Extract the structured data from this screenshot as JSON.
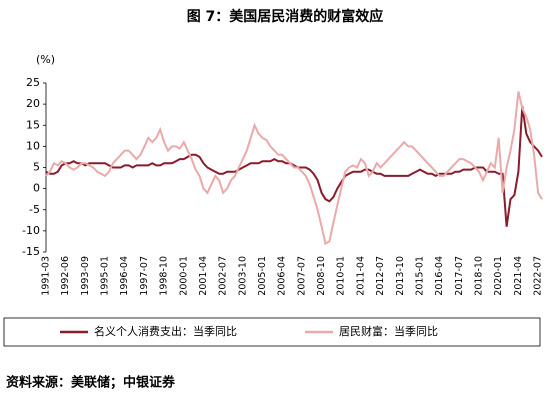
{
  "chart_data": {
    "type": "line",
    "title": "图 7：美国居民消费的财富效应",
    "y_label": "(%)",
    "source": "资料来源：美联储；中银证券",
    "ylim": [
      -15,
      25
    ],
    "yticks": [
      -15,
      -10,
      -5,
      0,
      5,
      10,
      15,
      20,
      25
    ],
    "categories": [
      "1991-03",
      null,
      null,
      null,
      null,
      "1992-06",
      null,
      null,
      null,
      null,
      "1993-09",
      null,
      null,
      null,
      null,
      "1995-01",
      null,
      null,
      null,
      null,
      "1996-04",
      null,
      null,
      null,
      null,
      "1997-07",
      null,
      null,
      null,
      null,
      "1998-10",
      null,
      null,
      null,
      null,
      "2000-01",
      null,
      null,
      null,
      null,
      "2001-04",
      null,
      null,
      null,
      null,
      "2002-07",
      null,
      null,
      null,
      null,
      "2003-10",
      null,
      null,
      null,
      null,
      "2005-01",
      null,
      null,
      null,
      null,
      "2006-04",
      null,
      null,
      null,
      null,
      "2007-07",
      null,
      null,
      null,
      null,
      "2008-10",
      null,
      null,
      null,
      null,
      "2010-01",
      null,
      null,
      null,
      null,
      "2011-04",
      null,
      null,
      null,
      null,
      "2012-07",
      null,
      null,
      null,
      null,
      "2013-10",
      null,
      null,
      null,
      null,
      "2015-01",
      null,
      null,
      null,
      null,
      "2016-04",
      null,
      null,
      null,
      null,
      "2017-07",
      null,
      null,
      null,
      null,
      "2018-10",
      null,
      null,
      null,
      null,
      "2020-01",
      null,
      null,
      null,
      null,
      "2021-04",
      null,
      null,
      null,
      null,
      "2022-07",
      null
    ],
    "series": [
      {
        "name": "名义个人消费支出：当季同比",
        "color": "#8b1a2b",
        "values": [
          4,
          3.5,
          3.5,
          4,
          5.5,
          6,
          6,
          6.5,
          6,
          6,
          5.5,
          6,
          6,
          6,
          6,
          6,
          5.5,
          5,
          5,
          5,
          5.5,
          5.5,
          5,
          5.5,
          5.5,
          5.5,
          5.5,
          6,
          5.5,
          5.5,
          6,
          6,
          6,
          6.5,
          7,
          7,
          7.5,
          8,
          8,
          7.5,
          6,
          5,
          4.5,
          4,
          3.5,
          3.5,
          4,
          4,
          4,
          4.5,
          5,
          5.5,
          6,
          6,
          6,
          6.5,
          6.5,
          6.5,
          7,
          6.5,
          6.5,
          6,
          6,
          5.5,
          5,
          5,
          5,
          4.5,
          3.5,
          2,
          -1,
          -2.5,
          -3,
          -2,
          0,
          1.5,
          3,
          3.5,
          4,
          4,
          4,
          4.5,
          4.5,
          4,
          3.5,
          3.5,
          3,
          3,
          3,
          3,
          3,
          3,
          3,
          3.5,
          4,
          4.5,
          4,
          3.5,
          3.5,
          3,
          3.5,
          3.5,
          3.5,
          3.5,
          4,
          4,
          4.5,
          4.5,
          4.5,
          5,
          5,
          5,
          4,
          4,
          4,
          3.5,
          3.5,
          -9,
          -2.5,
          -1.5,
          4,
          19.5,
          13,
          11,
          10,
          9,
          7.5
        ]
      },
      {
        "name": "居民财富：当季同比",
        "color": "#eba9a9",
        "values": [
          3,
          4,
          6,
          5.5,
          6.5,
          6,
          5,
          4.5,
          5,
          6,
          6,
          5.5,
          5,
          4,
          3.5,
          3,
          4,
          6,
          7,
          8,
          9,
          9,
          8,
          7,
          8,
          10,
          12,
          11,
          12,
          14,
          11,
          9,
          10,
          10,
          9.5,
          11,
          9,
          7,
          4.5,
          3,
          0,
          -1,
          1,
          3,
          2,
          -1,
          0,
          2,
          3,
          5,
          7,
          9,
          12,
          15,
          13,
          12,
          11.5,
          10,
          9,
          8,
          8,
          7,
          6,
          5,
          5,
          4,
          3,
          1,
          -2,
          -5,
          -9,
          -13,
          -12.5,
          -8,
          -4,
          0,
          4,
          5,
          5.5,
          5,
          7,
          6,
          3,
          4,
          6,
          5,
          6,
          7,
          8,
          9,
          10,
          11,
          10,
          10,
          9,
          8,
          7,
          6,
          5,
          4,
          3,
          3,
          4,
          5,
          6,
          7,
          7,
          6.5,
          6,
          5,
          4,
          2,
          4,
          6,
          5,
          12,
          -1,
          5,
          9,
          14,
          23,
          19,
          17,
          14,
          8,
          -1,
          -2.5
        ]
      }
    ]
  }
}
